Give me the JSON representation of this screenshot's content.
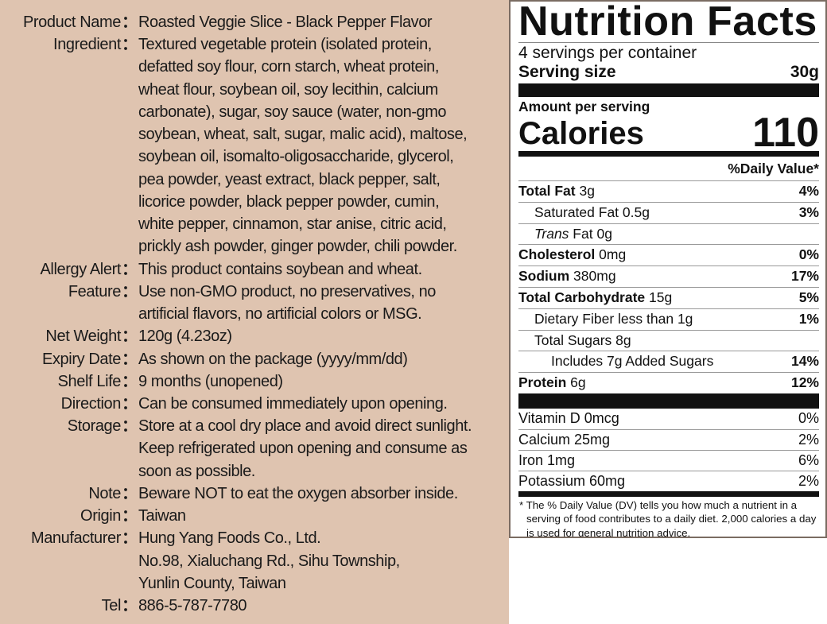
{
  "product_info": [
    {
      "label": "Product Name",
      "lines": [
        "Roasted Veggie Slice - Black Pepper Flavor"
      ]
    },
    {
      "label": "Ingredient",
      "lines": [
        "Textured vegetable protein (isolated protein,",
        "defatted soy flour, corn starch, wheat protein,",
        "wheat flour, soybean oil, soy lecithin, calcium",
        "carbonate), sugar, soy sauce (water, non-gmo",
        "soybean, wheat, salt, sugar, malic acid), maltose,",
        "soybean oil, isomalto-oligosaccharide, glycerol,",
        "pea powder, yeast extract, black pepper, salt,",
        "licorice powder, black pepper powder, cumin,",
        "white pepper, cinnamon, star anise, citric acid,",
        "prickly ash powder, ginger powder, chili powder."
      ]
    },
    {
      "label": "Allergy Alert",
      "lines": [
        "This product contains soybean and wheat."
      ]
    },
    {
      "label": "Feature",
      "lines": [
        "Use non-GMO product, no preservatives, no",
        "artificial flavors, no artificial colors or MSG."
      ]
    },
    {
      "label": "Net Weight",
      "lines": [
        "120g (4.23oz)"
      ]
    },
    {
      "label": "Expiry Date",
      "lines": [
        "As shown on the package (yyyy/mm/dd)"
      ]
    },
    {
      "label": "Shelf Life",
      "lines": [
        "9 months (unopened)"
      ]
    },
    {
      "label": "Direction",
      "lines": [
        "Can be consumed immediately upon opening."
      ]
    },
    {
      "label": "Storage",
      "lines": [
        "Store at a cool dry place and avoid direct sunlight.",
        "Keep refrigerated upon opening and consume as",
        "soon as possible."
      ]
    },
    {
      "label": "Note",
      "lines": [
        "Beware NOT to eat the oxygen absorber inside."
      ]
    },
    {
      "label": "Origin",
      "lines": [
        "Taiwan"
      ]
    },
    {
      "label": "Manufacturer",
      "lines": [
        "Hung Yang Foods Co., Ltd.",
        "No.98, Xialuchang Rd., Sihu Township,",
        "Yunlin County, Taiwan"
      ]
    },
    {
      "label": "Tel",
      "lines": [
        "886-5-787-7780"
      ]
    }
  ],
  "colon": "：",
  "nutrition": {
    "title": "Nutrition Facts",
    "servings": "4 servings per container",
    "serving_size_label": "Serving size",
    "serving_size_value": "30g",
    "amount_per_serving": "Amount per serving",
    "calories_label": "Calories",
    "calories_value": "110",
    "daily_value_header": "%Daily Value*",
    "rows": [
      {
        "name": "Total Fat",
        "amount": "3g",
        "dv": "4%",
        "bold": true,
        "indent": 0
      },
      {
        "name": "Saturated Fat",
        "amount": "0.5g",
        "dv": "3%",
        "bold": false,
        "indent": 1
      },
      {
        "name": "Trans",
        "name_suffix": " Fat",
        "amount": "0g",
        "dv": "",
        "bold": false,
        "indent": 1,
        "italic": true
      },
      {
        "name": "Cholesterol",
        "amount": "0mg",
        "dv": "0%",
        "bold": true,
        "indent": 0
      },
      {
        "name": "Sodium",
        "amount": "380mg",
        "dv": "17%",
        "bold": true,
        "indent": 0
      },
      {
        "name": "Total Carbohydrate",
        "amount": "15g",
        "dv": "5%",
        "bold": true,
        "indent": 0
      },
      {
        "name": "Dietary Fiber less than",
        "amount": "1g",
        "dv": "1%",
        "bold": false,
        "indent": 1
      },
      {
        "name": "Total Sugars",
        "amount": "8g",
        "dv": "",
        "bold": false,
        "indent": 1
      },
      {
        "name": "Includes 7g Added Sugars",
        "amount": "",
        "dv": "14%",
        "bold": false,
        "indent": 2
      },
      {
        "name": "Protein",
        "amount": "6g",
        "dv": "12%",
        "bold": true,
        "indent": 0
      }
    ],
    "vitamins": [
      {
        "name": "Vitamin D 0mcg",
        "dv": "0%"
      },
      {
        "name": "Calcium 25mg",
        "dv": "2%"
      },
      {
        "name": "Iron 1mg",
        "dv": "6%"
      },
      {
        "name": "Potassium 60mg",
        "dv": "2%"
      }
    ],
    "footnote": "* The % Daily Value (DV) tells you how much a nutrient in a serving of food contributes to a daily diet. 2,000 calories a day is used for general nutrition advice."
  }
}
